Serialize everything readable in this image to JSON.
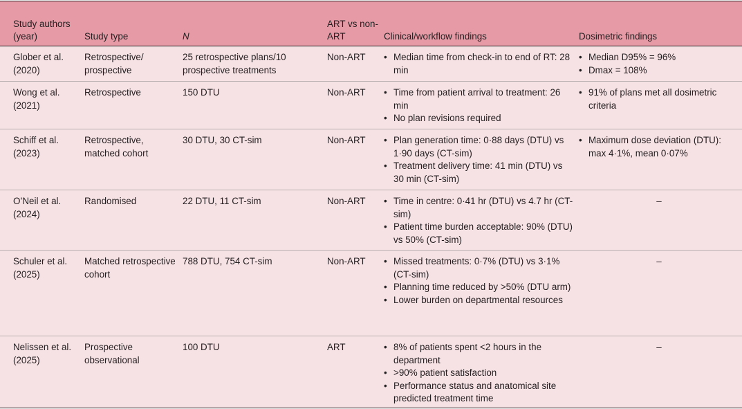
{
  "headers": {
    "authors": "Study authors (year)",
    "type": "Study type",
    "n": "N",
    "art": "ART vs non-ART",
    "clinical": "Clinical/workflow findings",
    "dosimetric": "Dosimetric findings"
  },
  "rows": [
    {
      "authors": "Glober et al. (2020)",
      "type": "Retrospective/ prospective",
      "n": "25 retrospective plans/10 prospective treatments",
      "art": "Non-ART",
      "clinical": [
        "Median time from check-in to end of RT: 28 min"
      ],
      "dosimetric": [
        "Median D95% = 96%",
        "Dmax = 108%"
      ]
    },
    {
      "authors": "Wong et al. (2021)",
      "type": "Retrospective",
      "n": "150 DTU",
      "art": "Non-ART",
      "clinical": [
        "Time from patient arrival to treatment: 26 min",
        "No plan revisions required"
      ],
      "dosimetric": [
        "91% of plans met all dosimetric criteria"
      ]
    },
    {
      "authors": "Schiff et al. (2023)",
      "type": "Retrospective, matched cohort",
      "n": "30 DTU, 30 CT-sim",
      "art": "Non-ART",
      "clinical": [
        "Plan generation time: 0·88 days (DTU) vs 1·90 days (CT-sim)",
        "Treatment delivery time: 41 min (DTU) vs 30 min (CT-sim)"
      ],
      "dosimetric": [
        "Maximum dose deviation (DTU): max 4·1%, mean 0·07%"
      ]
    },
    {
      "authors": "O’Neil et al. (2024)",
      "type": "Randomised",
      "n": "22 DTU, 11 CT-sim",
      "art": "Non-ART",
      "clinical": [
        "Time in centre: 0·41 hr (DTU) vs 4.7 hr (CT-sim)",
        "Patient time burden acceptable: 90% (DTU) vs 50% (CT-sim)"
      ],
      "dosimetric_dash": "–"
    },
    {
      "authors": "Schuler et al. (2025)",
      "type": "Matched retrospective cohort",
      "n": "788 DTU, 754 CT-sim",
      "art": "Non-ART",
      "clinical": [
        "Missed treatments: 0·7% (DTU) vs 3·1% (CT-sim)",
        "Planning time reduced by >50% (DTU arm)",
        "Lower burden on departmental resources"
      ],
      "dosimetric_dash": "–"
    },
    {
      "authors": "Nelissen et al. (2025)",
      "type": "Prospective observational",
      "n": "100 DTU",
      "art": "ART",
      "clinical": [
        "8% of patients spent <2 hours in the department",
        ">90% patient satisfaction",
        "Performance status and anatomical site predicted treatment time"
      ],
      "dosimetric_dash": "–"
    }
  ]
}
